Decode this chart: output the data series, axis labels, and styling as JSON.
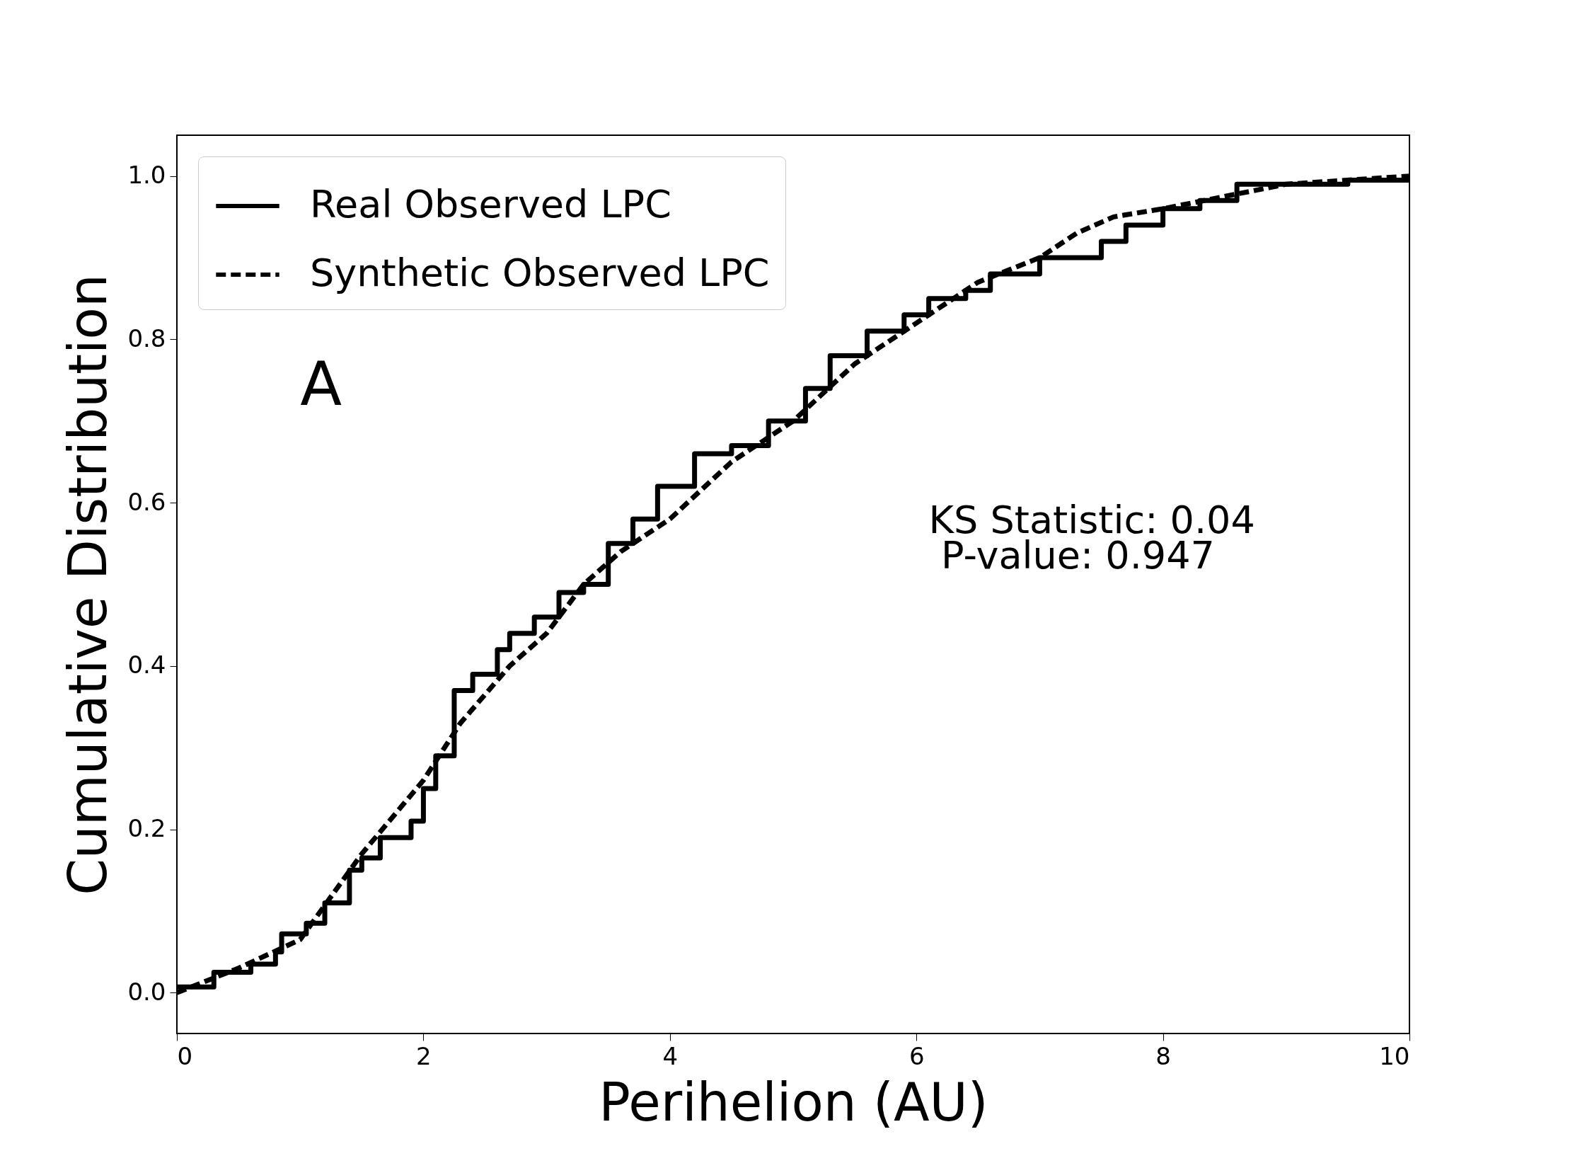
{
  "chart_data": {
    "type": "line",
    "xlabel": "Perihelion (AU)",
    "ylabel": "Cumulative Distribution",
    "xlim": [
      0,
      10
    ],
    "ylim": [
      -0.05,
      1.05
    ],
    "xticks": [
      0,
      2,
      4,
      6,
      8,
      10
    ],
    "yticks": [
      {
        "value": 0,
        "label": "0.0"
      },
      {
        "value": 0.2,
        "label": "0.2"
      },
      {
        "value": 0.4,
        "label": "0.4"
      },
      {
        "value": 0.6,
        "label": "0.6"
      },
      {
        "value": 0.8,
        "label": "0.8"
      },
      {
        "value": 1,
        "label": "1.0"
      }
    ],
    "grid": false,
    "legend": "top left",
    "annotations": [
      "A",
      "KS Statistic: 0.04",
      " P-value: 0.947"
    ],
    "series": [
      {
        "name": "Real Observed LPC",
        "type": "step",
        "line_style": "solid",
        "color": "#000000",
        "x": [
          0,
          0.3,
          0.6,
          0.8,
          0.85,
          1.05,
          1.2,
          1.4,
          1.5,
          1.65,
          1.9,
          2.0,
          2.1,
          2.25,
          2.4,
          2.6,
          2.7,
          2.9,
          3.1,
          3.3,
          3.5,
          3.7,
          3.9,
          4.2,
          4.5,
          4.8,
          5.1,
          5.3,
          5.6,
          5.9,
          6.1,
          6.4,
          6.6,
          7.0,
          7.5,
          7.7,
          8.0,
          8.3,
          8.6,
          9.5,
          10
        ],
        "values": [
          0.007,
          0.025,
          0.035,
          0.05,
          0.072,
          0.085,
          0.11,
          0.15,
          0.165,
          0.19,
          0.21,
          0.25,
          0.29,
          0.37,
          0.39,
          0.42,
          0.44,
          0.46,
          0.49,
          0.5,
          0.55,
          0.58,
          0.62,
          0.66,
          0.67,
          0.7,
          0.74,
          0.78,
          0.81,
          0.83,
          0.85,
          0.86,
          0.88,
          0.9,
          0.92,
          0.94,
          0.96,
          0.97,
          0.99,
          0.995,
          1.0
        ]
      },
      {
        "name": "Synthetic Observed LPC",
        "type": "line",
        "line_style": "dashed",
        "color": "#000000",
        "x": [
          0,
          0.5,
          1.0,
          1.5,
          2.0,
          2.3,
          2.7,
          3.0,
          3.3,
          3.6,
          4.0,
          4.5,
          5.0,
          5.5,
          6.0,
          6.5,
          7.0,
          7.3,
          7.6,
          8.0,
          8.5,
          9.0,
          10
        ],
        "values": [
          0.0,
          0.03,
          0.065,
          0.17,
          0.26,
          0.33,
          0.4,
          0.44,
          0.5,
          0.54,
          0.58,
          0.65,
          0.7,
          0.77,
          0.82,
          0.87,
          0.9,
          0.93,
          0.95,
          0.96,
          0.975,
          0.99,
          1.0
        ]
      }
    ]
  }
}
